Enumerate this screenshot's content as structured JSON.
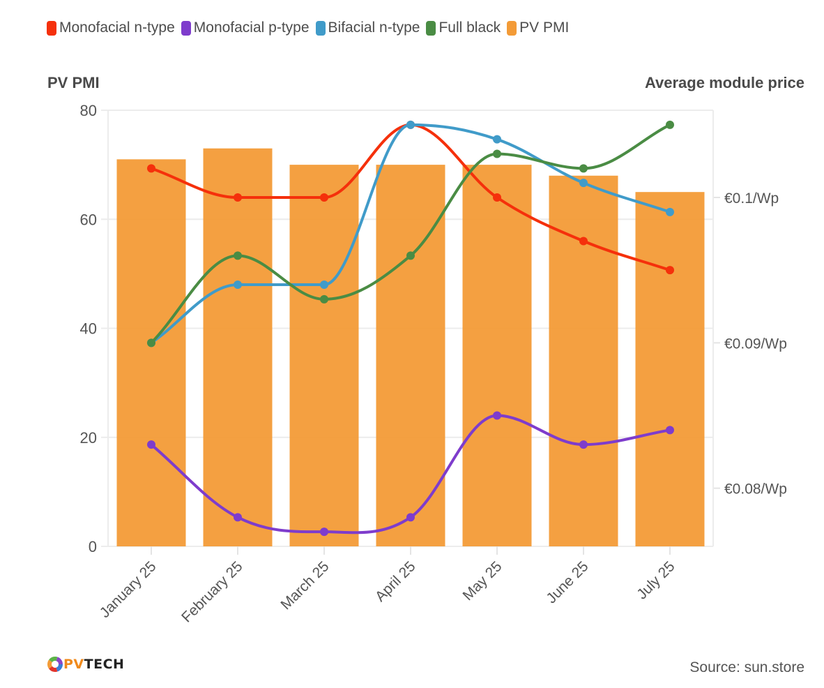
{
  "legend": [
    {
      "name": "Monofacial n-type",
      "color": "#f5300b"
    },
    {
      "name": "Monofacial p-type",
      "color": "#7e3ccc"
    },
    {
      "name": "Bifacial n-type",
      "color": "#409bc9"
    },
    {
      "name": "Full black",
      "color": "#4a8c44"
    },
    {
      "name": "PV PMI",
      "color": "#f39b37"
    }
  ],
  "footer": {
    "source": "Source: sun.store",
    "logo_pv": "PV",
    "logo_tech": "TECH"
  },
  "chart_data": {
    "type": "bar+line",
    "title": "",
    "categories": [
      "January 25",
      "February 25",
      "March 25",
      "April 25",
      "May 25",
      "June 25",
      "July 25"
    ],
    "left_axis": {
      "label": "PV PMI",
      "range": [
        0,
        80
      ],
      "ticks": [
        0,
        20,
        40,
        60,
        80
      ],
      "tick_labels": [
        "0",
        "20",
        "40",
        "60",
        "80"
      ]
    },
    "right_axis": {
      "label": "Average module price",
      "range": [
        0.076,
        0.106
      ],
      "ticks": [
        0.08,
        0.09,
        0.1
      ],
      "tick_labels": [
        "€0.08/Wp",
        "€0.09/Wp",
        "€0.1/Wp"
      ]
    },
    "grid": true,
    "legend_position": "top-left",
    "bars": {
      "name": "PV PMI",
      "axis": "left",
      "color": "#f39b37",
      "values": [
        71,
        73,
        70,
        70,
        70,
        68,
        65
      ]
    },
    "series": [
      {
        "name": "Monofacial n-type",
        "axis": "right",
        "color": "#f5300b",
        "values": [
          0.102,
          0.1,
          0.1,
          0.105,
          0.1,
          0.097,
          0.095
        ]
      },
      {
        "name": "Monofacial p-type",
        "axis": "right",
        "color": "#7e3ccc",
        "values": [
          0.083,
          0.078,
          0.077,
          0.078,
          0.085,
          0.083,
          0.084
        ]
      },
      {
        "name": "Bifacial n-type",
        "axis": "right",
        "color": "#409bc9",
        "values": [
          0.09,
          0.094,
          0.094,
          0.105,
          0.104,
          0.101,
          0.099
        ]
      },
      {
        "name": "Full black",
        "axis": "right",
        "color": "#4a8c44",
        "values": [
          0.09,
          0.096,
          0.093,
          0.096,
          0.103,
          0.102,
          0.105
        ]
      }
    ]
  }
}
